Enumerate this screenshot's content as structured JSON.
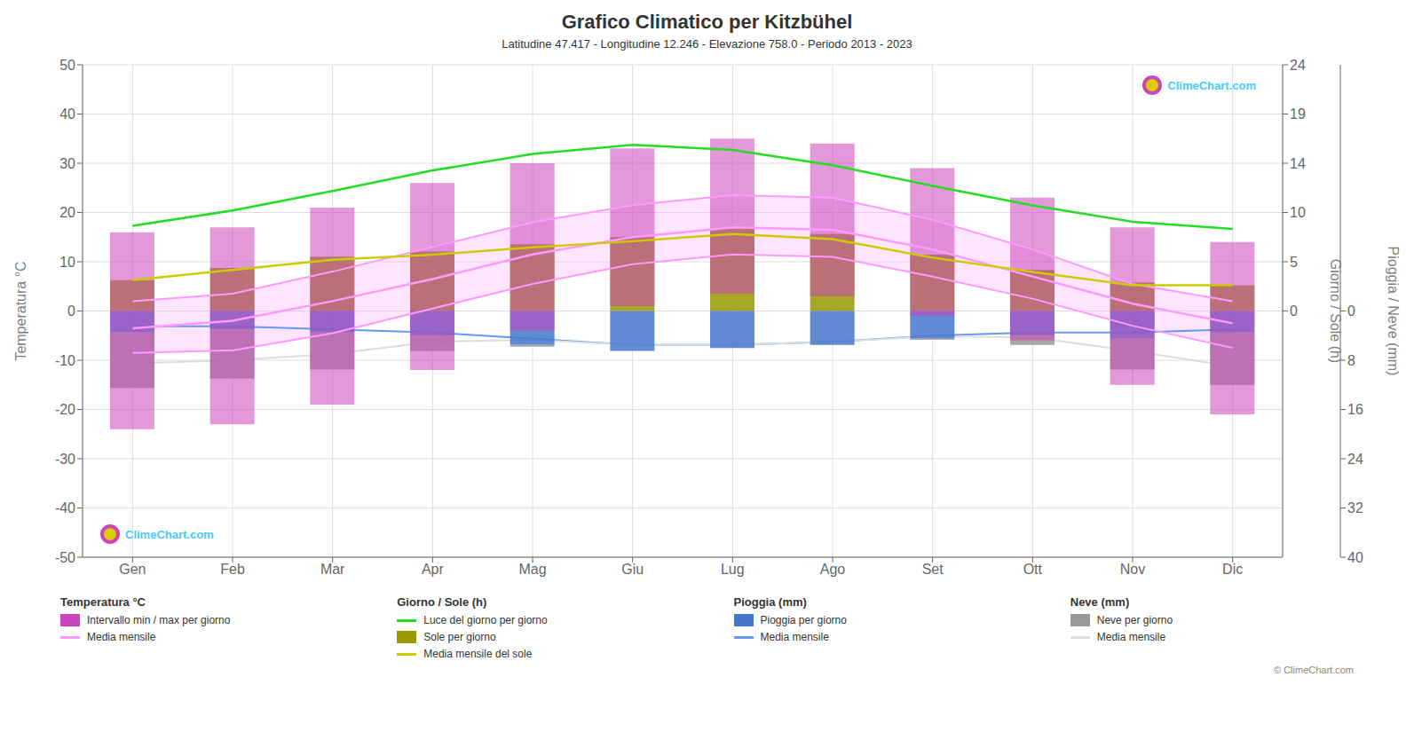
{
  "chart_data": {
    "type": "combo",
    "title": "Grafico Climatico per Kitzbühel",
    "subtitle": "Latitudine 47.417 - Longitudine 12.246 - Elevazione 758.0 - Periodo 2013 - 2023",
    "categories": [
      "Gen",
      "Feb",
      "Mar",
      "Apr",
      "Mag",
      "Giu",
      "Lug",
      "Ago",
      "Set",
      "Ott",
      "Nov",
      "Dic"
    ],
    "y_label": "Temperatura °C",
    "y2_label": "Giorno / Sole (h)",
    "y3_label": "Pioggia / Neve (mm)",
    "ylim": [
      -50,
      50
    ],
    "yticks": [
      -50,
      -40,
      -30,
      -20,
      -10,
      0,
      10,
      20,
      30,
      40,
      50
    ],
    "y2lim": [
      -24,
      24
    ],
    "y2ticks": [
      0,
      {
        "value": 4.8,
        "label": "5"
      },
      {
        "value": 9.6,
        "label": "10"
      },
      {
        "value": 14.4,
        "label": "14"
      },
      {
        "value": 19.2,
        "label": "19"
      },
      24
    ],
    "y3lim": [
      40,
      -40
    ],
    "y3ticks": [
      0,
      8,
      16,
      24,
      32,
      40
    ],
    "grid": true,
    "legend_groups": [
      "Temperatura °C",
      "Giorno / Sole (h)",
      "Pioggia (mm)",
      "Neve (mm)"
    ],
    "series": [
      {
        "name": "Intervallo min / max per giorno",
        "group": "Temperatura °C",
        "type": "range",
        "color": "#cc44bb",
        "low": [
          -24.0,
          -23.0,
          -19.0,
          -12.0,
          -4.0,
          1.0,
          3.5,
          3.0,
          -1.0,
          -6.0,
          -15.0,
          -21.0
        ],
        "high": [
          16.0,
          17.0,
          21.0,
          26.0,
          30.0,
          33.0,
          35.0,
          34.0,
          29.0,
          23.0,
          17.0,
          14.0
        ]
      },
      {
        "name": "Media mensile",
        "group": "Temperatura °C",
        "type": "line",
        "color": "#ff99ff",
        "values": [
          -3.5,
          -2.0,
          2.0,
          6.5,
          11.5,
          15.0,
          17.0,
          16.5,
          12.5,
          7.0,
          1.5,
          -2.5
        ],
        "low": [
          -8.5,
          -8.0,
          -4.5,
          0.5,
          5.5,
          9.5,
          11.5,
          11.0,
          7.0,
          2.5,
          -3.0,
          -7.5
        ],
        "high": [
          2.0,
          3.5,
          8.0,
          13.0,
          18.0,
          21.5,
          23.5,
          23.0,
          18.5,
          12.5,
          5.5,
          2.0
        ]
      },
      {
        "name": "Luce del giorno per giorno",
        "group": "Giorno / Sole (h)",
        "type": "line",
        "axis": "y2",
        "color": "#22dd22",
        "values": [
          8.3,
          9.8,
          11.7,
          13.7,
          15.3,
          16.2,
          15.7,
          14.2,
          12.2,
          10.3,
          8.7,
          8.0
        ]
      },
      {
        "name": "Sole per giorno",
        "group": "Giorno / Sole (h)",
        "type": "bar",
        "axis": "y2",
        "color": "#999900",
        "values": [
          3.0,
          4.2,
          5.3,
          5.8,
          6.5,
          7.2,
          8.0,
          7.5,
          5.5,
          4.0,
          2.8,
          2.5
        ]
      },
      {
        "name": "Media mensile del sole",
        "group": "Giorno / Sole (h)",
        "type": "line",
        "axis": "y2",
        "color": "#cccc00",
        "values": [
          3.0,
          4.0,
          5.0,
          5.5,
          6.2,
          6.8,
          7.5,
          7.0,
          5.2,
          3.8,
          2.5,
          2.5
        ]
      },
      {
        "name": "Pioggia per giorno",
        "group": "Pioggia (mm)",
        "type": "bar",
        "axis": "y3",
        "stacked": true,
        "color": "#4477cc",
        "values": [
          3.5,
          3.0,
          3.5,
          4.0,
          5.5,
          6.5,
          6.0,
          5.5,
          4.5,
          4.0,
          4.5,
          3.5
        ]
      },
      {
        "name": "Media mensile",
        "group": "Pioggia (mm)",
        "type": "line",
        "axis": "y3",
        "stacked": true,
        "color": "#6699ee",
        "values": [
          2.5,
          2.5,
          3.0,
          3.5,
          4.5,
          5.5,
          5.5,
          5.0,
          4.0,
          3.5,
          3.5,
          3.0
        ]
      },
      {
        "name": "Neve per giorno",
        "group": "Neve (mm)",
        "type": "bar",
        "axis": "y3",
        "stacked": true,
        "color": "#999999",
        "values": [
          9.0,
          8.0,
          6.0,
          2.5,
          0.3,
          0.0,
          0.0,
          0.0,
          0.2,
          1.5,
          5.0,
          8.5
        ]
      },
      {
        "name": "Media mensile",
        "group": "Neve (mm)",
        "type": "line",
        "axis": "y3",
        "stacked": true,
        "color": "#dddddd",
        "values": [
          6.0,
          5.5,
          4.0,
          1.5,
          0.2,
          0.0,
          0.0,
          0.0,
          0.1,
          0.8,
          3.0,
          6.0
        ]
      }
    ],
    "annotations": [
      "ClimeChart.com",
      "ClimeChart.com",
      "© ClimeChart.com"
    ]
  }
}
